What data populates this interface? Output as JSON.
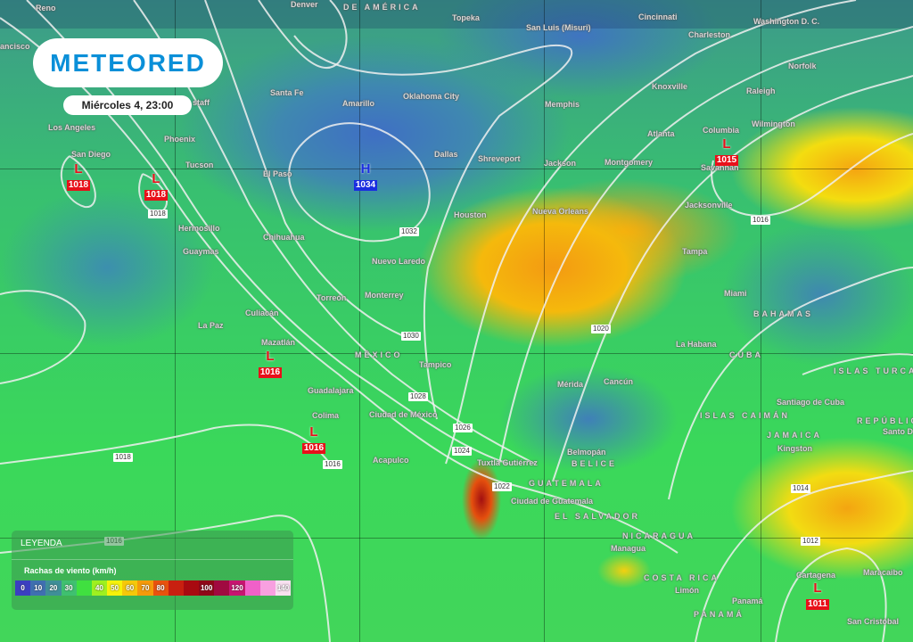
{
  "brand": {
    "logo_text": "METEORED",
    "brand_color": "#0a8fd8"
  },
  "timestamp": "Miércoles 4, 23:00",
  "legend": {
    "title": "LEYENDA",
    "subtitle": "Rachas de viento (km/h)",
    "scale": [
      {
        "label": "0",
        "color": "#3b3fc0"
      },
      {
        "label": "10",
        "color": "#3f6fb0"
      },
      {
        "label": "20",
        "color": "#3f8f98"
      },
      {
        "label": "30",
        "color": "#3fc070"
      },
      {
        "label": "",
        "color": "#40e040"
      },
      {
        "label": "40",
        "color": "#9ef020"
      },
      {
        "label": "50",
        "color": "#f6f20a"
      },
      {
        "label": "60",
        "color": "#f6c80a"
      },
      {
        "label": "70",
        "color": "#f59a0a"
      },
      {
        "label": "80",
        "color": "#e8520e"
      },
      {
        "label": "",
        "color": "#c82010"
      },
      {
        "label": "",
        "color": "#a80a10"
      },
      {
        "label": "100",
        "color": "#900818"
      },
      {
        "label": "",
        "color": "#a00a40"
      },
      {
        "label": "120",
        "color": "#c81470"
      },
      {
        "label": "",
        "color": "#f060c8"
      },
      {
        "label": "",
        "color": "#f8a0e0"
      },
      {
        "label": "140",
        "color": "#f8e0f0"
      }
    ]
  },
  "places": [
    "Reno",
    "Denver",
    "DE AMÉRICA",
    "Topeka",
    "San Luis (Misuri)",
    "Cincinnati",
    "Washington D. C.",
    "Charleston",
    "ancisco",
    "Norfolk",
    "Santa Fe",
    "Amarillo",
    "Oklahoma City",
    "staff",
    "Knoxville",
    "Raleigh",
    "Memphis",
    "Wilmington",
    "Los Angeles",
    "Columbia",
    "Atlanta",
    "Phoenix",
    "Dallas",
    "Shreveport",
    "Jackson",
    "Montgomery",
    "Savannah",
    "San Diego",
    "Tucson",
    "El Paso",
    "Jacksonville",
    "Houston",
    "Nueva Orleans",
    "Hermosillo",
    "Chihuahua",
    "Guaymas",
    "Tampa",
    "Nuevo Laredo",
    "Torreón",
    "Monterrey",
    "Miami",
    "Culiacán",
    "BAHAMAS",
    "La Paz",
    "Mazatlán",
    "La Habana",
    "CUBA",
    "MÉXICO",
    "Tampico",
    "ISLAS TURCAS Y CA",
    "Mérida",
    "Cancún",
    "Guadalajara",
    "ISLAS CAIMÁN",
    "Santiago de Cuba",
    "Colima",
    "Ciudad de México",
    "REPÚBLICA D",
    "Santo D",
    "JAMAICA",
    "Kingston",
    "Belmopán",
    "BELICE",
    "Acapulco",
    "Tuxtla Gutiérrez",
    "GUATEMALA",
    "Ciudad de Guatemala",
    "EL SALVADOR",
    "NICARAGUA",
    "Managua",
    "Maracaibo",
    "Cartagena",
    "COSTA RICA",
    "Limón",
    "Panamá",
    "PANAMÁ",
    "San Cristóbal"
  ],
  "pressure_centers": [
    {
      "type": "L",
      "value": "1018",
      "color": "#e8101a"
    },
    {
      "type": "L",
      "value": "1018",
      "color": "#e8101a"
    },
    {
      "type": "H",
      "value": "1034",
      "color": "#1a2ee0"
    },
    {
      "type": "L",
      "value": "1015",
      "color": "#e8101a"
    },
    {
      "type": "L",
      "value": "1016",
      "color": "#e8101a"
    },
    {
      "type": "L",
      "value": "1016",
      "color": "#e8101a"
    },
    {
      "type": "L",
      "value": "1011",
      "color": "#e8101a"
    }
  ],
  "isobar_labels": [
    "1018",
    "1032",
    "1030",
    "1028",
    "1026",
    "1024",
    "1022",
    "1020",
    "1016",
    "1016",
    "1018",
    "1016",
    "1014",
    "1012"
  ]
}
